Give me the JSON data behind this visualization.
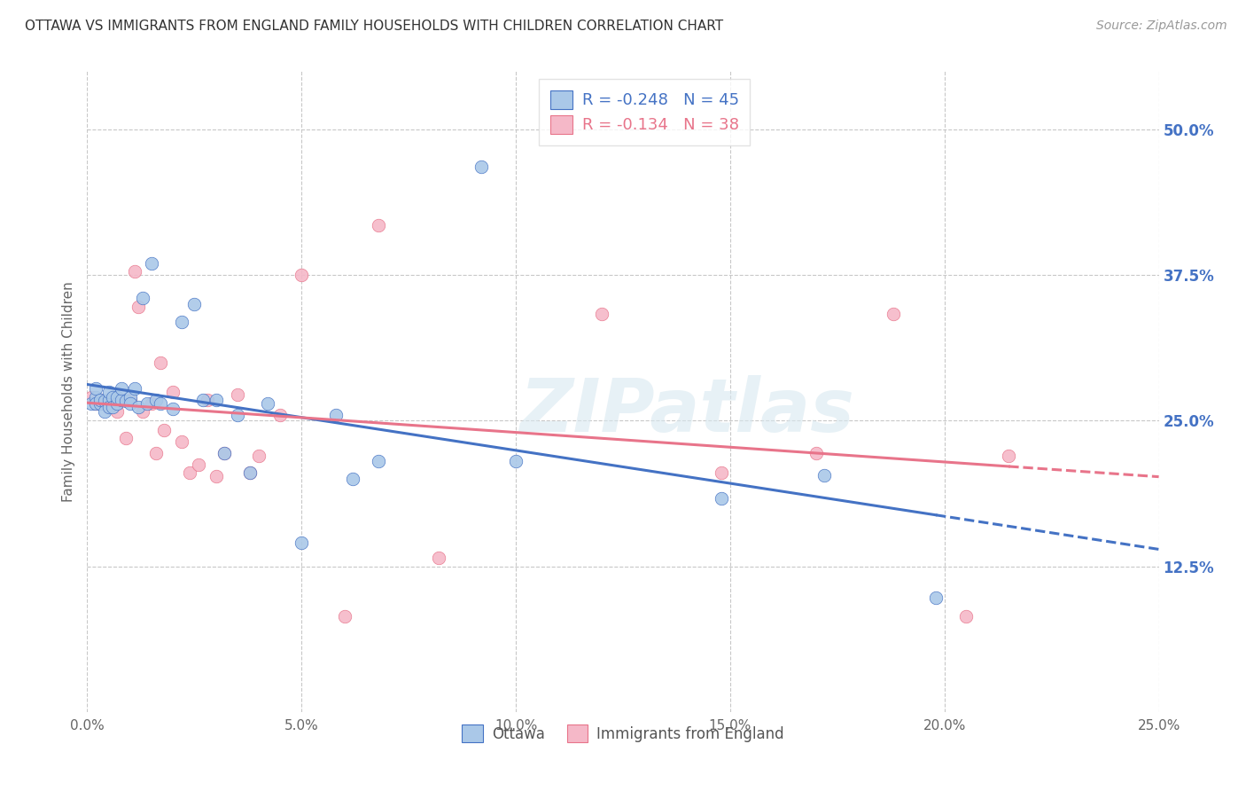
{
  "title": "OTTAWA VS IMMIGRANTS FROM ENGLAND FAMILY HOUSEHOLDS WITH CHILDREN CORRELATION CHART",
  "source": "Source: ZipAtlas.com",
  "ylabel": "Family Households with Children",
  "xlim": [
    0.0,
    0.25
  ],
  "ylim": [
    0.0,
    0.55
  ],
  "xtick_labels": [
    "0.0%",
    "5.0%",
    "10.0%",
    "15.0%",
    "20.0%",
    "25.0%"
  ],
  "xtick_vals": [
    0.0,
    0.05,
    0.1,
    0.15,
    0.2,
    0.25
  ],
  "ytick_labels": [
    "12.5%",
    "25.0%",
    "37.5%",
    "50.0%"
  ],
  "ytick_vals": [
    0.125,
    0.25,
    0.375,
    0.5
  ],
  "background_color": "#ffffff",
  "grid_color": "#c8c8c8",
  "watermark_text": "ZIPatlas",
  "legend_ottawa": "Ottawa",
  "legend_england": "Immigrants from England",
  "ottawa_R": "-0.248",
  "ottawa_N": "45",
  "england_R": "-0.134",
  "england_N": "38",
  "ottawa_color": "#aac8e8",
  "england_color": "#f5b8c8",
  "ottawa_line_color": "#4472c4",
  "england_line_color": "#e8748a",
  "ottawa_x": [
    0.001,
    0.002,
    0.002,
    0.002,
    0.003,
    0.003,
    0.004,
    0.004,
    0.005,
    0.005,
    0.005,
    0.006,
    0.006,
    0.007,
    0.007,
    0.008,
    0.008,
    0.009,
    0.01,
    0.01,
    0.011,
    0.012,
    0.013,
    0.014,
    0.015,
    0.016,
    0.017,
    0.02,
    0.022,
    0.025,
    0.027,
    0.03,
    0.032,
    0.035,
    0.038,
    0.042,
    0.05,
    0.058,
    0.062,
    0.068,
    0.092,
    0.1,
    0.148,
    0.172,
    0.198
  ],
  "ottawa_y": [
    0.265,
    0.27,
    0.265,
    0.278,
    0.265,
    0.268,
    0.267,
    0.258,
    0.268,
    0.262,
    0.275,
    0.27,
    0.262,
    0.265,
    0.27,
    0.268,
    0.278,
    0.267,
    0.27,
    0.265,
    0.278,
    0.262,
    0.355,
    0.265,
    0.385,
    0.268,
    0.265,
    0.26,
    0.335,
    0.35,
    0.268,
    0.268,
    0.222,
    0.255,
    0.205,
    0.265,
    0.145,
    0.255,
    0.2,
    0.215,
    0.468,
    0.215,
    0.183,
    0.203,
    0.098
  ],
  "england_x": [
    0.001,
    0.002,
    0.003,
    0.004,
    0.005,
    0.006,
    0.007,
    0.008,
    0.009,
    0.01,
    0.011,
    0.012,
    0.013,
    0.015,
    0.016,
    0.017,
    0.018,
    0.02,
    0.022,
    0.024,
    0.026,
    0.028,
    0.03,
    0.032,
    0.035,
    0.038,
    0.04,
    0.045,
    0.05,
    0.06,
    0.068,
    0.082,
    0.12,
    0.148,
    0.17,
    0.188,
    0.205,
    0.215
  ],
  "england_y": [
    0.27,
    0.265,
    0.268,
    0.265,
    0.262,
    0.265,
    0.258,
    0.268,
    0.235,
    0.268,
    0.378,
    0.348,
    0.258,
    0.265,
    0.222,
    0.3,
    0.242,
    0.275,
    0.232,
    0.205,
    0.212,
    0.268,
    0.202,
    0.222,
    0.272,
    0.205,
    0.22,
    0.255,
    0.375,
    0.082,
    0.418,
    0.132,
    0.342,
    0.205,
    0.222,
    0.342,
    0.082,
    0.22
  ]
}
